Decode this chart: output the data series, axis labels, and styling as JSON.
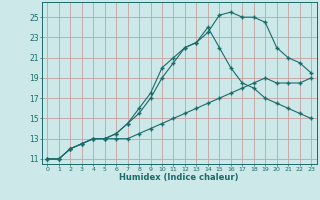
{
  "xlabel": "Humidex (Indice chaleur)",
  "bg_color": "#cce8e8",
  "grid_color": "#c8a0a0",
  "line_color": "#1a6b6b",
  "xlim": [
    -0.5,
    23.5
  ],
  "ylim": [
    10.5,
    26.5
  ],
  "yticks": [
    11,
    13,
    15,
    17,
    19,
    21,
    23,
    25
  ],
  "xticks": [
    0,
    1,
    2,
    3,
    4,
    5,
    6,
    7,
    8,
    9,
    10,
    11,
    12,
    13,
    14,
    15,
    16,
    17,
    18,
    19,
    20,
    21,
    22,
    23
  ],
  "line1_x": [
    0,
    1,
    2,
    3,
    4,
    5,
    6,
    7,
    8,
    9,
    10,
    11,
    12,
    13,
    14,
    15,
    16,
    17,
    18,
    19,
    20,
    21,
    22,
    23
  ],
  "line1_y": [
    11,
    11,
    12,
    12.5,
    13,
    13,
    13.5,
    14.5,
    16,
    17.5,
    20,
    21,
    22,
    22.5,
    23.5,
    25.2,
    25.5,
    25,
    25,
    24.5,
    22,
    21,
    20.5,
    19.5
  ],
  "line2_x": [
    0,
    1,
    2,
    3,
    4,
    5,
    6,
    7,
    8,
    9,
    10,
    11,
    12,
    13,
    14,
    15,
    16,
    17,
    18,
    19,
    20,
    21,
    22,
    23
  ],
  "line2_y": [
    11,
    11,
    12,
    12.5,
    13,
    13,
    13.5,
    14.5,
    15.5,
    17,
    19,
    20.5,
    22,
    22.5,
    24,
    22,
    20,
    18.5,
    18,
    17,
    16.5,
    16,
    15.5,
    15
  ],
  "line3_x": [
    0,
    1,
    2,
    3,
    4,
    5,
    6,
    7,
    8,
    9,
    10,
    11,
    12,
    13,
    14,
    15,
    16,
    17,
    18,
    19,
    20,
    21,
    22,
    23
  ],
  "line3_y": [
    11,
    11,
    12,
    12.5,
    13,
    13,
    13,
    13,
    13.5,
    14,
    14.5,
    15,
    15.5,
    16,
    16.5,
    17,
    17.5,
    18,
    18.5,
    19,
    18.5,
    18.5,
    18.5,
    19
  ]
}
